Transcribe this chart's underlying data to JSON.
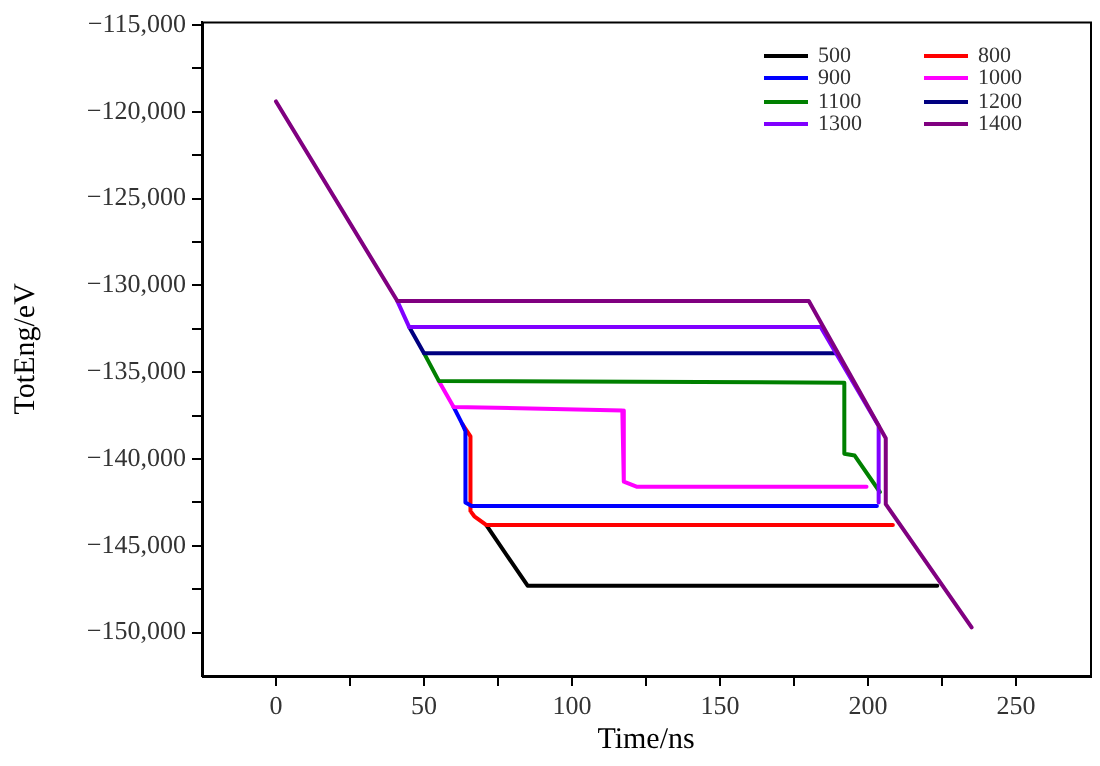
{
  "chart_data": {
    "type": "line",
    "xlabel": "Time/ns",
    "ylabel": "TotEng/eV",
    "xlim": [
      -25,
      275
    ],
    "ylim": [
      -152500,
      -114800
    ],
    "xticks": [
      0,
      {
        "value": 25,
        "label": null
      },
      50,
      {
        "value": 75,
        "label": null
      },
      100,
      {
        "value": 125,
        "label": null
      },
      150,
      {
        "value": 175,
        "label": null
      },
      200,
      {
        "value": 225,
        "label": null
      },
      250
    ],
    "yticks": [
      {
        "value": -150000,
        "label": "−150,000"
      },
      {
        "value": -147500,
        "label": null
      },
      {
        "value": -145000,
        "label": "−145,000"
      },
      {
        "value": -142500,
        "label": null
      },
      {
        "value": -140000,
        "label": "−140,000"
      },
      {
        "value": -137500,
        "label": null
      },
      {
        "value": -135000,
        "label": "−135,000"
      },
      {
        "value": -132500,
        "label": null
      },
      {
        "value": -130000,
        "label": "−130,000"
      },
      {
        "value": -127500,
        "label": null
      },
      {
        "value": -125000,
        "label": "−125,000"
      },
      {
        "value": -122500,
        "label": null
      },
      {
        "value": -120000,
        "label": "−120,000"
      },
      {
        "value": -117500,
        "label": null
      },
      {
        "value": -115000,
        "label": "−115,000"
      }
    ],
    "grid": false,
    "legend": "top right",
    "marker": "none",
    "line_style": "solid",
    "series": [
      {
        "name": "500",
        "color": "#000000",
        "x": [
          71,
          85,
          223.4
        ],
        "values": [
          -143800,
          -147300,
          -147300
        ]
      },
      {
        "name": "800",
        "color": "#ff0000",
        "x": [
          63,
          65.7,
          65.7,
          67,
          71,
          208.4
        ],
        "values": [
          -138000,
          -138700,
          -143000,
          -143300,
          -143800,
          -143800
        ]
      },
      {
        "name": "900",
        "color": "#0000ff",
        "x": [
          60,
          63,
          64,
          64,
          66,
          203
        ],
        "values": [
          -137000,
          -138000,
          -138400,
          -142500,
          -142700,
          -142700
        ]
      },
      {
        "name": "1000",
        "color": "#ff00ff",
        "x": [
          55,
          60,
          117,
          117.5,
          122,
          199.5
        ],
        "values": [
          -135500,
          -137000,
          -137200,
          -141300,
          -141600,
          -141600
        ]
      },
      {
        "name": "1100",
        "color": "#008000",
        "x": [
          50,
          55,
          192,
          192,
          195.5,
          204
        ],
        "values": [
          -133900,
          -135500,
          -135600,
          -139700,
          -139800,
          -141900
        ]
      },
      {
        "name": "1200",
        "color": "#000080",
        "x": [
          45,
          50,
          189
        ],
        "values": [
          -132400,
          -133900,
          -133900
        ]
      },
      {
        "name": "1300",
        "color": "#8000ff",
        "x": [
          41,
          45,
          184,
          203.6,
          203.6
        ],
        "values": [
          -130900,
          -132400,
          -132400,
          -138100,
          -142500
        ]
      },
      {
        "name": "1400",
        "color": "#800080",
        "x": [
          0,
          41,
          180,
          206,
          206,
          235
        ],
        "values": [
          -119400,
          -130900,
          -130900,
          -138800,
          -142600,
          -149700
        ]
      }
    ]
  }
}
